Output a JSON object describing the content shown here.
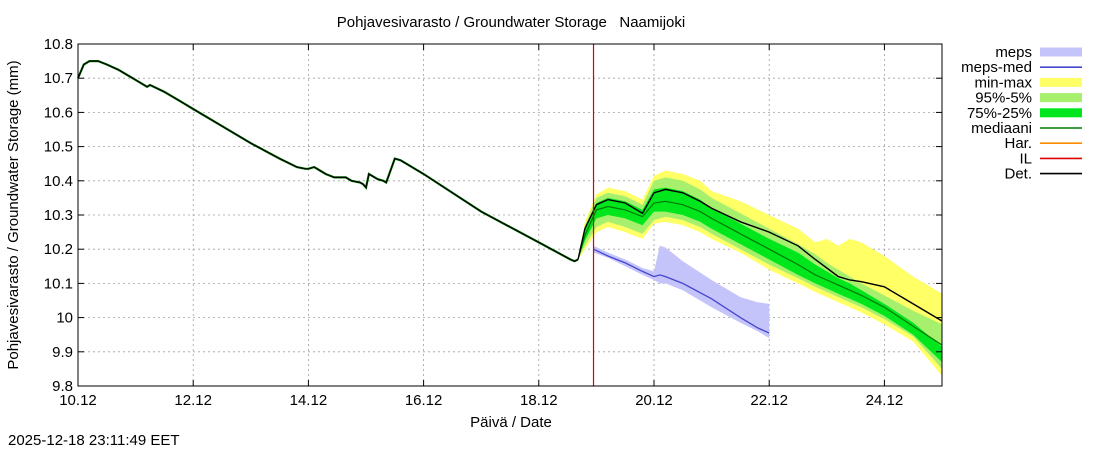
{
  "chart_data": {
    "type": "line",
    "title": "Pohjavesivarasto / Groundwater Storage   Naamijoki",
    "xlabel": "Päivä / Date",
    "ylabel": "Pohjavesivarasto / Groundwater Storage (mm)",
    "timestamp": "2025-12-18 23:11:49 EET",
    "xlim": [
      0,
      15
    ],
    "ylim": [
      9.8,
      10.8
    ],
    "grid": true,
    "x_unit": "days since 10.12",
    "xticks": [
      {
        "x": 0,
        "label": "10.12"
      },
      {
        "x": 2,
        "label": "12.12"
      },
      {
        "x": 4,
        "label": "14.12"
      },
      {
        "x": 6,
        "label": "16.12"
      },
      {
        "x": 8,
        "label": "18.12"
      },
      {
        "x": 10,
        "label": "20.12"
      },
      {
        "x": 12,
        "label": "22.12"
      },
      {
        "x": 14,
        "label": "24.12"
      }
    ],
    "yticks": [
      {
        "y": 9.8,
        "label": "9.8"
      },
      {
        "y": 9.9,
        "label": "9.9"
      },
      {
        "y": 10.0,
        "label": "10"
      },
      {
        "y": 10.1,
        "label": "10.1"
      },
      {
        "y": 10.2,
        "label": "10.2"
      },
      {
        "y": 10.3,
        "label": "10.3"
      },
      {
        "y": 10.4,
        "label": "10.4"
      },
      {
        "y": 10.5,
        "label": "10.5"
      },
      {
        "y": 10.6,
        "label": "10.6"
      },
      {
        "y": 10.7,
        "label": "10.7"
      },
      {
        "y": 10.8,
        "label": "10.8"
      }
    ],
    "legend": {
      "position": "right",
      "entries": [
        {
          "key": "meps",
          "label": "meps",
          "kind": "band",
          "color": "#c4c4fa"
        },
        {
          "key": "meps_med",
          "label": "meps-med",
          "kind": "line",
          "color": "#4646cc"
        },
        {
          "key": "minmax",
          "label": "min-max",
          "kind": "band",
          "color": "#ffff66"
        },
        {
          "key": "p95_5",
          "label": "95%-5%",
          "kind": "band",
          "color": "#a6f06e"
        },
        {
          "key": "p75_25",
          "label": "75%-25%",
          "kind": "band",
          "color": "#00e61c"
        },
        {
          "key": "median",
          "label": "mediaani",
          "kind": "line",
          "color": "#007800"
        },
        {
          "key": "har",
          "label": "Har.",
          "kind": "line",
          "color": "#ff8c00"
        },
        {
          "key": "il",
          "label": "IL",
          "kind": "line",
          "color": "#dd0000"
        },
        {
          "key": "det",
          "label": "Det.",
          "kind": "line",
          "color": "#000000"
        }
      ]
    },
    "il_x": 8.95,
    "series": {
      "observed": {
        "name": "Det. (observed)",
        "color": "#000000",
        "x": [
          0,
          0.1,
          0.2,
          0.35,
          0.5,
          0.7,
          1.0,
          1.2,
          1.25,
          1.5,
          1.8,
          2.0,
          2.5,
          3.0,
          3.5,
          3.8,
          3.95,
          4.0,
          4.1,
          4.2,
          4.3,
          4.45,
          4.55,
          4.65,
          4.75,
          4.9,
          4.95,
          5.0,
          5.05,
          5.1,
          5.2,
          5.3,
          5.35,
          5.5,
          5.6,
          5.7,
          6.0,
          7.0,
          8.0,
          8.55,
          8.62,
          8.68
        ],
        "y": [
          10.7,
          10.74,
          10.75,
          10.75,
          10.74,
          10.725,
          10.695,
          10.675,
          10.68,
          10.66,
          10.63,
          10.61,
          10.56,
          10.51,
          10.465,
          10.44,
          10.435,
          10.435,
          10.44,
          10.43,
          10.42,
          10.41,
          10.41,
          10.41,
          10.4,
          10.395,
          10.39,
          10.38,
          10.42,
          10.415,
          10.405,
          10.4,
          10.395,
          10.465,
          10.46,
          10.45,
          10.42,
          10.31,
          10.22,
          10.17,
          10.165,
          10.17
        ]
      },
      "minmax": {
        "x": [
          8.68,
          8.8,
          9.0,
          9.2,
          9.5,
          9.8,
          10.0,
          10.2,
          10.5,
          10.8,
          11.0,
          11.5,
          12.0,
          12.5,
          12.8,
          13.0,
          13.2,
          13.4,
          13.6,
          14.0,
          14.5,
          15.0
        ],
        "low": [
          10.17,
          10.2,
          10.25,
          10.265,
          10.25,
          10.23,
          10.275,
          10.28,
          10.27,
          10.25,
          10.23,
          10.19,
          10.14,
          10.1,
          10.075,
          10.06,
          10.045,
          10.03,
          10.015,
          9.98,
          9.93,
          9.83
        ],
        "high": [
          10.17,
          10.28,
          10.36,
          10.38,
          10.37,
          10.345,
          10.415,
          10.43,
          10.42,
          10.4,
          10.37,
          10.34,
          10.3,
          10.26,
          10.22,
          10.23,
          10.21,
          10.23,
          10.22,
          10.18,
          10.12,
          10.07
        ]
      },
      "p95_5": {
        "x": [
          8.68,
          8.8,
          9.0,
          9.2,
          9.5,
          9.8,
          10.0,
          10.2,
          10.5,
          10.8,
          11.0,
          11.5,
          12.0,
          12.5,
          12.8,
          13.0,
          13.2,
          13.4,
          13.6,
          14.0,
          14.5,
          15.0
        ],
        "low": [
          10.17,
          10.21,
          10.265,
          10.28,
          10.265,
          10.245,
          10.285,
          10.295,
          10.285,
          10.265,
          10.245,
          10.2,
          10.155,
          10.115,
          10.09,
          10.075,
          10.06,
          10.045,
          10.03,
          9.995,
          9.945,
          9.85
        ],
        "high": [
          10.17,
          10.27,
          10.35,
          10.365,
          10.355,
          10.33,
          10.4,
          10.41,
          10.4,
          10.375,
          10.35,
          10.305,
          10.26,
          10.215,
          10.185,
          10.16,
          10.14,
          10.12,
          10.1,
          10.065,
          10.02,
          9.98
        ]
      },
      "p75_25": {
        "x": [
          8.68,
          8.8,
          9.0,
          9.2,
          9.5,
          9.8,
          10.0,
          10.2,
          10.5,
          10.8,
          11.0,
          11.5,
          12.0,
          12.5,
          12.8,
          13.0,
          13.2,
          13.4,
          13.6,
          14.0,
          14.5,
          15.0
        ],
        "low": [
          10.17,
          10.225,
          10.29,
          10.3,
          10.29,
          10.27,
          10.31,
          10.31,
          10.3,
          10.28,
          10.26,
          10.215,
          10.17,
          10.125,
          10.1,
          10.085,
          10.07,
          10.055,
          10.04,
          10.005,
          9.95,
          9.87
        ],
        "high": [
          10.17,
          10.255,
          10.335,
          10.35,
          10.34,
          10.315,
          10.375,
          10.38,
          10.37,
          10.345,
          10.32,
          10.275,
          10.23,
          10.19,
          10.155,
          10.135,
          10.115,
          10.1,
          10.08,
          10.04,
          9.985,
          9.915
        ]
      },
      "median": {
        "name": "mediaani",
        "color": "#007800",
        "x": [
          8.68,
          8.8,
          9.0,
          9.2,
          9.5,
          9.8,
          10.0,
          10.2,
          10.5,
          10.8,
          11.0,
          11.5,
          12.0,
          12.5,
          12.8,
          13.0,
          13.2,
          13.4,
          13.6,
          14.0,
          14.5,
          15.0
        ],
        "y": [
          10.17,
          10.24,
          10.315,
          10.325,
          10.315,
          10.295,
          10.335,
          10.34,
          10.33,
          10.31,
          10.29,
          10.245,
          10.2,
          10.155,
          10.125,
          10.11,
          10.095,
          10.08,
          10.065,
          10.03,
          9.975,
          9.92
        ]
      },
      "det": {
        "name": "Det.",
        "color": "#000000",
        "x": [
          8.68,
          8.8,
          9.0,
          9.2,
          9.5,
          9.8,
          10.0,
          10.2,
          10.5,
          10.8,
          11.0,
          11.5,
          12.0,
          12.5,
          12.8,
          13.0,
          13.2,
          13.4,
          13.6,
          14.0,
          14.5,
          15.0
        ],
        "y": [
          10.17,
          10.26,
          10.33,
          10.345,
          10.335,
          10.305,
          10.365,
          10.375,
          10.365,
          10.34,
          10.32,
          10.28,
          10.25,
          10.21,
          10.17,
          10.145,
          10.12,
          10.11,
          10.105,
          10.09,
          10.04,
          9.99
        ]
      },
      "meps": {
        "x": [
          8.95,
          9.2,
          9.5,
          9.8,
          10.0,
          10.1,
          10.2,
          10.5,
          11.0,
          11.5,
          11.8,
          12.0
        ],
        "low": [
          10.19,
          10.175,
          10.15,
          10.125,
          10.11,
          10.1,
          10.1,
          10.08,
          10.03,
          9.985,
          9.96,
          9.94
        ],
        "high": [
          10.21,
          10.19,
          10.17,
          10.145,
          10.135,
          10.21,
          10.205,
          10.165,
          10.11,
          10.06,
          10.045,
          10.04
        ]
      },
      "meps_med": {
        "name": "meps-med",
        "color": "#4646cc",
        "x": [
          8.95,
          9.2,
          9.5,
          9.8,
          10.0,
          10.1,
          10.2,
          10.5,
          11.0,
          11.5,
          11.8,
          12.0
        ],
        "y": [
          10.2,
          10.18,
          10.16,
          10.135,
          10.12,
          10.125,
          10.12,
          10.1,
          10.055,
          10.0,
          9.97,
          9.955
        ]
      }
    }
  }
}
